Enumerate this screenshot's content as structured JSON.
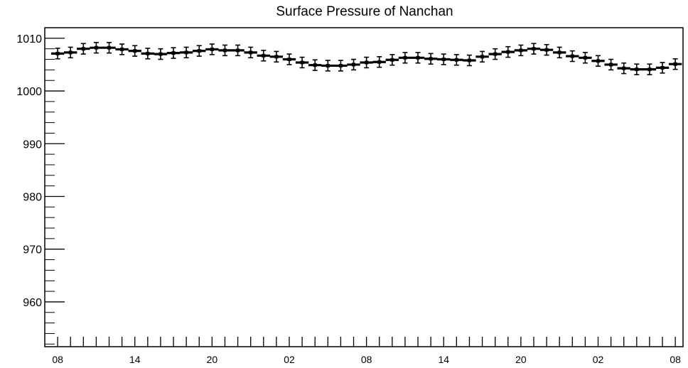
{
  "chart_data": {
    "type": "scatter",
    "title": "Surface Pressure of Nanchan",
    "xlabel": "",
    "ylabel": "",
    "ylim": [
      951.5,
      1012
    ],
    "xlim": [
      -1.0,
      48.6
    ],
    "y_ticks": [
      960,
      970,
      980,
      990,
      1000,
      1010
    ],
    "x_tick_labels": [
      {
        "x": 0,
        "label": "08"
      },
      {
        "x": 6,
        "label": "14"
      },
      {
        "x": 12,
        "label": "20"
      },
      {
        "x": 18,
        "label": "02"
      },
      {
        "x": 24,
        "label": "08"
      },
      {
        "x": 30,
        "label": "14"
      },
      {
        "x": 36,
        "label": "20"
      },
      {
        "x": 42,
        "label": "02"
      },
      {
        "x": 48,
        "label": "08"
      }
    ],
    "grid": false,
    "series": [
      {
        "error": 1.0,
        "x": [
          0,
          1,
          2,
          3,
          4,
          5,
          6,
          7,
          8,
          9,
          10,
          11,
          12,
          13,
          14,
          15,
          16,
          17,
          18,
          19,
          20,
          21,
          22,
          23,
          24,
          25,
          26,
          27,
          28,
          29,
          30,
          31,
          32,
          33,
          34,
          35,
          36,
          37,
          38,
          39,
          40,
          41,
          42,
          43,
          44,
          45,
          46,
          47,
          48
        ],
        "values": [
          1007.1,
          1007.3,
          1008.0,
          1008.2,
          1008.2,
          1007.9,
          1007.6,
          1007.1,
          1007.0,
          1007.2,
          1007.3,
          1007.6,
          1007.9,
          1007.7,
          1007.7,
          1007.3,
          1006.7,
          1006.5,
          1006.0,
          1005.4,
          1004.9,
          1004.8,
          1004.8,
          1005.0,
          1005.4,
          1005.5,
          1005.9,
          1006.3,
          1006.3,
          1006.1,
          1006.0,
          1005.9,
          1005.8,
          1006.5,
          1007.0,
          1007.4,
          1007.7,
          1008.0,
          1007.8,
          1007.3,
          1006.6,
          1006.3,
          1005.7,
          1005.0,
          1004.3,
          1004.1,
          1004.1,
          1004.4,
          1005.1
        ]
      }
    ]
  }
}
